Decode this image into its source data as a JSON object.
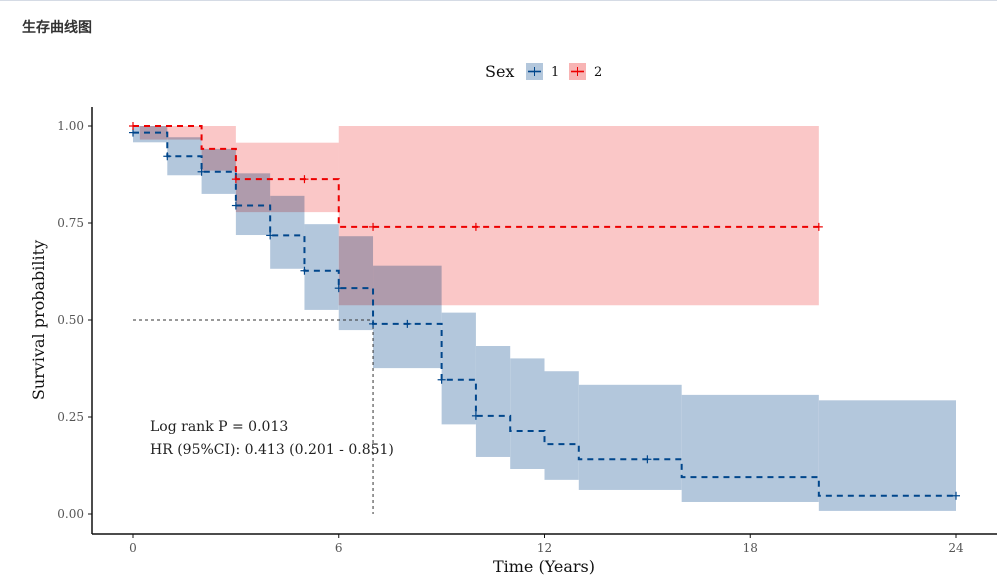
{
  "page": {
    "title": "生存曲线图"
  },
  "chart_data": {
    "type": "line",
    "subtype": "kaplan-meier",
    "title": "",
    "xlabel": "Time (Years)",
    "ylabel": "Survival probability",
    "xlim": [
      0,
      24
    ],
    "ylim": [
      0,
      1
    ],
    "xticks": [
      0,
      6,
      12,
      18,
      24
    ],
    "xtick_labels": [
      "0",
      "6",
      "12",
      "18",
      "24"
    ],
    "yticks": [
      0,
      0.25,
      0.5,
      0.75,
      1.0
    ],
    "ytick_labels": [
      "0.00",
      "0.25",
      "0.50",
      "0.75",
      "1.00"
    ],
    "grid": false,
    "legend": {
      "title": "Sex",
      "placement": "top",
      "entries": [
        {
          "label": "1",
          "color": "#00468B",
          "fill": "#B3C7DC"
        },
        {
          "label": "2",
          "color": "#ED0000",
          "fill": "#F8B4B4"
        }
      ]
    },
    "median_line": {
      "y": 0.5,
      "x": 7
    },
    "annotations": [
      "Log rank P = 0.013",
      "HR (95%CI): 0.413 (0.201 - 0.851)"
    ],
    "series": [
      {
        "name": "1",
        "color": "#00468B",
        "ci_color": "#B3C7DC",
        "end_time": 24,
        "steps": [
          {
            "t": 0,
            "s": 0.983,
            "lo": 0.958,
            "hi": 1.0
          },
          {
            "t": 1,
            "s": 0.922,
            "lo": 0.873,
            "hi": 0.971
          },
          {
            "t": 2,
            "s": 0.882,
            "lo": 0.825,
            "hi": 0.941
          },
          {
            "t": 3,
            "s": 0.795,
            "lo": 0.719,
            "hi": 0.878
          },
          {
            "t": 4,
            "s": 0.718,
            "lo": 0.632,
            "hi": 0.82
          },
          {
            "t": 5,
            "s": 0.627,
            "lo": 0.526,
            "hi": 0.747
          },
          {
            "t": 6,
            "s": 0.582,
            "lo": 0.474,
            "hi": 0.716
          },
          {
            "t": 7,
            "s": 0.49,
            "lo": 0.376,
            "hi": 0.64
          },
          {
            "t": 9,
            "s": 0.346,
            "lo": 0.231,
            "hi": 0.519
          },
          {
            "t": 10,
            "s": 0.253,
            "lo": 0.147,
            "hi": 0.433
          },
          {
            "t": 11,
            "s": 0.214,
            "lo": 0.116,
            "hi": 0.401
          },
          {
            "t": 12,
            "s": 0.18,
            "lo": 0.088,
            "hi": 0.368
          },
          {
            "t": 13,
            "s": 0.141,
            "lo": 0.062,
            "hi": 0.333
          },
          {
            "t": 16,
            "s": 0.095,
            "lo": 0.031,
            "hi": 0.307
          },
          {
            "t": 20,
            "s": 0.047,
            "lo": 0.008,
            "hi": 0.293
          }
        ],
        "censor_times": [
          0,
          1,
          2,
          3,
          4,
          5,
          6,
          7,
          8,
          9,
          10,
          15,
          24
        ]
      },
      {
        "name": "2",
        "color": "#ED0000",
        "ci_color": "#F8B4B4",
        "end_time": 20,
        "steps": [
          {
            "t": 0,
            "s": 1.0,
            "lo": 1.0,
            "hi": 1.0
          },
          {
            "t": 0.2,
            "s": 1.0,
            "lo": 0.965,
            "hi": 1.0
          },
          {
            "t": 2,
            "s": 0.941,
            "lo": 0.885,
            "hi": 1.0
          },
          {
            "t": 3,
            "s": 0.863,
            "lo": 0.778,
            "hi": 0.957
          },
          {
            "t": 6,
            "s": 0.74,
            "lo": 0.538,
            "hi": 1.0
          }
        ],
        "censor_times": [
          0,
          3,
          5,
          7,
          10,
          20
        ]
      }
    ]
  }
}
